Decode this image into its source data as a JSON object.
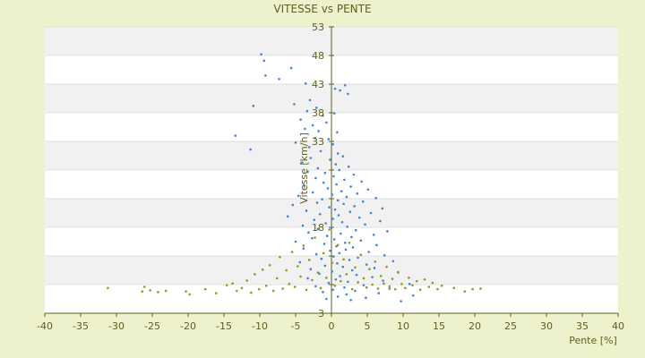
{
  "chart_data": {
    "type": "scatter",
    "title": "VITESSE vs PENTE",
    "xlabel": "Pente [%]",
    "ylabel": "Vitesse [km/h]",
    "xlim": [
      -40,
      40
    ],
    "ylim": [
      3,
      53
    ],
    "x_ticks": [
      -40,
      -35,
      -30,
      -25,
      -20,
      -15,
      -10,
      -5,
      0,
      5,
      10,
      15,
      20,
      25,
      30,
      35,
      40
    ],
    "y_ticks": [
      3,
      8,
      13,
      18,
      23,
      28,
      33,
      38,
      43,
      48,
      53
    ],
    "y_tick_labels": [
      "3",
      "",
      "",
      "18",
      "",
      "",
      "33",
      "38",
      "43",
      "48",
      "53"
    ],
    "grid": true,
    "series": [
      {
        "color": "#3d86d6",
        "points": [
          [
            -9.8,
            48.2
          ],
          [
            -9.4,
            47.1
          ],
          [
            -5.6,
            45.8
          ],
          [
            -9.2,
            44.5
          ],
          [
            -7.3,
            43.9
          ],
          [
            -3.6,
            43.1
          ],
          [
            1.9,
            42.8
          ],
          [
            0.5,
            42.2
          ],
          [
            1.2,
            41.9
          ],
          [
            2.3,
            41.3
          ],
          [
            -3.0,
            40.2
          ],
          [
            -5.2,
            39.5
          ],
          [
            -10.9,
            39.2
          ],
          [
            -2.1,
            38.9
          ],
          [
            -3.4,
            38.3
          ],
          [
            0.4,
            37.9
          ],
          [
            -1.2,
            37.5
          ],
          [
            -4.3,
            36.8
          ],
          [
            -0.7,
            36.3
          ],
          [
            -2.6,
            35.8
          ],
          [
            -3.7,
            35.2
          ],
          [
            -1.8,
            34.8
          ],
          [
            0.8,
            34.6
          ],
          [
            -13.4,
            34.0
          ],
          [
            -2.3,
            33.6
          ],
          [
            -0.4,
            33.4
          ],
          [
            -5.0,
            32.8
          ],
          [
            0.2,
            32.5
          ],
          [
            -3.1,
            32.0
          ],
          [
            -11.3,
            31.6
          ],
          [
            -1.5,
            31.3
          ],
          [
            0.9,
            30.9
          ],
          [
            1.6,
            30.4
          ],
          [
            -2.9,
            30.1
          ],
          [
            -0.2,
            29.8
          ],
          [
            -4.1,
            29.3
          ],
          [
            0.6,
            29.0
          ],
          [
            2.4,
            28.6
          ],
          [
            -1.9,
            28.3
          ],
          [
            1.1,
            28.0
          ],
          [
            -3.3,
            27.7
          ],
          [
            -0.9,
            27.5
          ],
          [
            3.1,
            27.2
          ],
          [
            0.3,
            26.9
          ],
          [
            -2.2,
            26.6
          ],
          [
            1.8,
            26.3
          ],
          [
            4.2,
            26.0
          ],
          [
            -1.1,
            25.8
          ],
          [
            0.7,
            25.5
          ],
          [
            -3.8,
            25.3
          ],
          [
            2.7,
            25.1
          ],
          [
            -0.5,
            24.8
          ],
          [
            5.1,
            24.6
          ],
          [
            1.4,
            24.3
          ],
          [
            -2.6,
            24.1
          ],
          [
            3.6,
            23.9
          ],
          [
            0.1,
            23.7
          ],
          [
            -4.6,
            23.5
          ],
          [
            2.1,
            23.3
          ],
          [
            6.2,
            23.1
          ],
          [
            -1.3,
            22.9
          ],
          [
            0.9,
            22.7
          ],
          [
            4.4,
            22.5
          ],
          [
            -2.0,
            22.3
          ],
          [
            1.7,
            22.1
          ],
          [
            -5.4,
            21.9
          ],
          [
            3.2,
            21.7
          ],
          [
            -0.3,
            21.5
          ],
          [
            7.1,
            21.3
          ],
          [
            0.5,
            21.1
          ],
          [
            -3.5,
            20.9
          ],
          [
            2.6,
            20.7
          ],
          [
            5.5,
            20.5
          ],
          [
            -1.6,
            20.3
          ],
          [
            1.0,
            20.1
          ],
          [
            -6.1,
            19.9
          ],
          [
            3.9,
            19.7
          ],
          [
            0.2,
            19.5
          ],
          [
            -2.4,
            19.3
          ],
          [
            6.8,
            19.1
          ],
          [
            1.5,
            18.9
          ],
          [
            -0.8,
            18.7
          ],
          [
            4.7,
            18.5
          ],
          [
            -4.0,
            18.3
          ],
          [
            2.2,
            18.1
          ],
          [
            0.0,
            17.9
          ],
          [
            -1.9,
            17.7
          ],
          [
            3.4,
            17.5
          ],
          [
            7.8,
            17.3
          ],
          [
            -3.2,
            17.1
          ],
          [
            1.3,
            16.9
          ],
          [
            5.9,
            16.7
          ],
          [
            -0.6,
            16.5
          ],
          [
            2.8,
            16.3
          ],
          [
            -2.7,
            16.1
          ],
          [
            0.4,
            15.9
          ],
          [
            4.1,
            15.7
          ],
          [
            -5.0,
            15.5
          ],
          [
            1.9,
            15.3
          ],
          [
            -1.0,
            15.1
          ],
          [
            6.3,
            14.9
          ],
          [
            0.7,
            14.7
          ],
          [
            3.0,
            14.5
          ],
          [
            -3.9,
            14.3
          ],
          [
            2.0,
            14.1
          ],
          [
            -0.2,
            13.9
          ],
          [
            5.2,
            13.7
          ],
          [
            1.1,
            13.5
          ],
          [
            -2.1,
            13.3
          ],
          [
            7.4,
            13.1
          ],
          [
            0.3,
            12.9
          ],
          [
            3.7,
            12.7
          ],
          [
            -1.4,
            12.5
          ],
          [
            2.5,
            12.3
          ],
          [
            8.6,
            12.1
          ],
          [
            -4.4,
            11.9
          ],
          [
            0.8,
            11.7
          ],
          [
            4.9,
            11.5
          ],
          [
            -0.9,
            11.3
          ],
          [
            1.6,
            11.1
          ],
          [
            6.0,
            10.9
          ],
          [
            -2.9,
            10.7
          ],
          [
            2.9,
            10.5
          ],
          [
            0.1,
            10.3
          ],
          [
            9.3,
            10.1
          ],
          [
            -1.7,
            9.9
          ],
          [
            3.5,
            9.7
          ],
          [
            1.2,
            9.5
          ],
          [
            5.7,
            9.3
          ],
          [
            -3.3,
            9.1
          ],
          [
            0.6,
            8.9
          ],
          [
            7.2,
            8.7
          ],
          [
            2.3,
            8.5
          ],
          [
            -0.4,
            8.3
          ],
          [
            10.9,
            8.1
          ],
          [
            4.5,
            7.9
          ],
          [
            -2.2,
            7.7
          ],
          [
            1.8,
            7.5
          ],
          [
            8.1,
            7.3
          ],
          [
            0.2,
            7.1
          ],
          [
            3.3,
            6.9
          ],
          [
            -1.2,
            6.7
          ],
          [
            6.6,
            6.5
          ],
          [
            2.1,
            6.3
          ],
          [
            11.4,
            6.1
          ],
          [
            0.9,
            5.9
          ],
          [
            4.8,
            5.7
          ],
          [
            -0.7,
            5.5
          ],
          [
            2.7,
            5.3
          ],
          [
            9.7,
            5.1
          ]
        ]
      },
      {
        "color": "#8e9b18",
        "points": [
          [
            -31.2,
            7.4
          ],
          [
            -26.1,
            7.6
          ],
          [
            -26.4,
            6.8
          ],
          [
            -25.3,
            7.0
          ],
          [
            -24.2,
            6.7
          ],
          [
            -23.1,
            6.9
          ],
          [
            -20.3,
            6.8
          ],
          [
            -19.8,
            6.3
          ],
          [
            -17.6,
            7.2
          ],
          [
            -16.1,
            6.5
          ],
          [
            -14.6,
            7.9
          ],
          [
            -13.8,
            8.2
          ],
          [
            -13.2,
            6.9
          ],
          [
            -12.5,
            7.4
          ],
          [
            -11.8,
            8.7
          ],
          [
            -11.2,
            6.6
          ],
          [
            -10.7,
            9.8
          ],
          [
            -10.1,
            7.2
          ],
          [
            -9.6,
            10.6
          ],
          [
            -9.1,
            7.8
          ],
          [
            -8.6,
            11.4
          ],
          [
            -8.1,
            6.9
          ],
          [
            -7.6,
            9.1
          ],
          [
            -7.2,
            12.8
          ],
          [
            -6.8,
            7.3
          ],
          [
            -6.3,
            10.5
          ],
          [
            -5.9,
            8.1
          ],
          [
            -5.5,
            13.7
          ],
          [
            -5.1,
            7.6
          ],
          [
            -4.7,
            11.2
          ],
          [
            -4.3,
            9.4
          ],
          [
            -3.9,
            14.8
          ],
          [
            -3.5,
            7.1
          ],
          [
            -3.1,
            12.3
          ],
          [
            -2.7,
            8.8
          ],
          [
            -2.3,
            16.2
          ],
          [
            -1.9,
            10.1
          ],
          [
            -1.5,
            7.4
          ],
          [
            -1.1,
            13.5
          ],
          [
            -0.7,
            9.2
          ],
          [
            -0.3,
            17.6
          ],
          [
            0.1,
            11.8
          ],
          [
            0.5,
            7.8
          ],
          [
            0.9,
            14.9
          ],
          [
            1.3,
            8.6
          ],
          [
            1.7,
            12.4
          ],
          [
            2.1,
            9.8
          ],
          [
            2.5,
            15.3
          ],
          [
            2.9,
            7.2
          ],
          [
            3.3,
            11.0
          ],
          [
            3.7,
            8.4
          ],
          [
            4.1,
            13.2
          ],
          [
            4.5,
            9.1
          ],
          [
            4.9,
            7.5
          ],
          [
            5.3,
            10.7
          ],
          [
            5.7,
            8.0
          ],
          [
            6.1,
            12.0
          ],
          [
            6.5,
            7.3
          ],
          [
            6.9,
            9.5
          ],
          [
            7.3,
            8.2
          ],
          [
            7.7,
            11.1
          ],
          [
            8.1,
            7.7
          ],
          [
            8.5,
            9.0
          ],
          [
            8.9,
            7.2
          ],
          [
            9.3,
            10.2
          ],
          [
            9.8,
            8.1
          ],
          [
            10.3,
            7.4
          ],
          [
            10.8,
            9.2
          ],
          [
            11.3,
            7.9
          ],
          [
            11.9,
            8.6
          ],
          [
            12.4,
            7.1
          ],
          [
            13.0,
            8.9
          ],
          [
            13.6,
            7.6
          ],
          [
            14.1,
            8.3
          ],
          [
            14.8,
            7.2
          ],
          [
            15.4,
            7.8
          ],
          [
            17.1,
            7.4
          ],
          [
            18.6,
            6.8
          ],
          [
            19.7,
            7.2
          ],
          [
            20.8,
            7.3
          ]
        ]
      }
    ]
  }
}
